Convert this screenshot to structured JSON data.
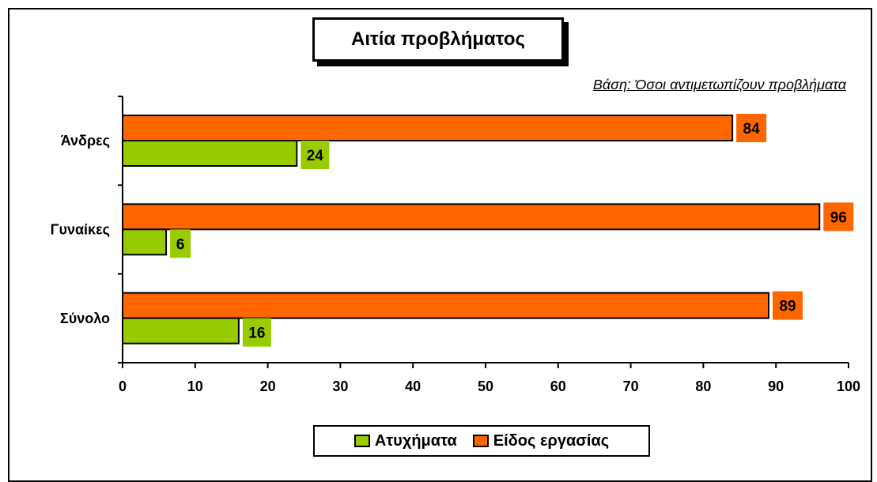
{
  "chart_data": {
    "type": "bar",
    "orientation": "horizontal",
    "title": "Αιτία προβλήματος",
    "subtitle": "Βάση: Όσοι αντιμετωπίζουν προβλήματα",
    "categories": [
      "Άνδρες",
      "Γυναίκες",
      "Σύνολο"
    ],
    "series": [
      {
        "name": "Είδος εργασίας",
        "color": "#FF6600",
        "values": [
          84,
          96,
          89
        ]
      },
      {
        "name": "Ατυχήματα",
        "color": "#99CC00",
        "values": [
          24,
          6,
          16
        ]
      }
    ],
    "xlim": [
      0,
      100
    ],
    "xticks": [
      "0",
      "10",
      "20",
      "30",
      "40",
      "50",
      "60",
      "70",
      "80",
      "90",
      "100"
    ],
    "grid": false,
    "legend_position": "bottom",
    "legend": [
      "Ατυχήματα",
      "Είδος εργασίας"
    ]
  }
}
